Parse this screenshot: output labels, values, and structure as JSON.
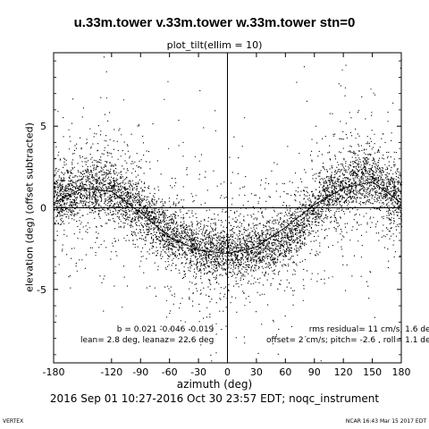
{
  "chart_data": {
    "type": "scatter",
    "title": "u.33m.tower v.33m.tower w.33m.tower stn=0",
    "subtitle": "plot_tilt(ellim = 10)",
    "xlabel": "azimuth (deg)",
    "ylabel": "elevation (deg)  (offset subtracted)",
    "xlim": [
      -180,
      180
    ],
    "ylim": [
      -9.5,
      9.5
    ],
    "xticks": [
      -180,
      -120,
      -90,
      -60,
      -30,
      0,
      30,
      60,
      90,
      120,
      150,
      180
    ],
    "xtick_labels": [
      "-180",
      "-120",
      "-90",
      "-60",
      "-30",
      "0",
      "30",
      "60",
      "90",
      "120",
      "150",
      "180"
    ],
    "yticks": [
      -5,
      0,
      5
    ],
    "ytick_labels": [
      "-5",
      "0",
      "5"
    ],
    "grid": false,
    "reference_lines": {
      "x": 0,
      "y": 0
    },
    "fit_curve": {
      "description_points_azimuth": [
        -180,
        -150,
        -120,
        -90,
        -60,
        -30,
        0,
        30,
        60,
        90,
        120,
        150,
        180
      ],
      "elevation": [
        0.3,
        1.2,
        1.0,
        -0.3,
        -1.8,
        -2.6,
        -2.8,
        -2.4,
        -1.2,
        0.2,
        1.2,
        1.6,
        0.3
      ]
    },
    "trend": {
      "azimuth": [
        -180,
        -165,
        -150,
        -135,
        -120,
        -105,
        -90,
        -75,
        -60,
        -45,
        -30,
        -15,
        0,
        15,
        30,
        45,
        60,
        75,
        90,
        100,
        110,
        120,
        130,
        140,
        150,
        160,
        170,
        180
      ],
      "elevation": [
        0.6,
        0.9,
        1.1,
        1.3,
        1.2,
        0.6,
        -0.2,
        -0.9,
        -1.6,
        -2.1,
        -2.5,
        -2.7,
        -2.8,
        -2.7,
        -2.5,
        -2.2,
        -1.8,
        -1.1,
        -0.1,
        0.5,
        0.9,
        1.2,
        1.5,
        2.0,
        1.8,
        1.4,
        1.0,
        0.6
      ]
    },
    "point_count": 9000,
    "point_color": "#000000"
  },
  "stats": {
    "left_line1": "b =  0.021 -0.046 -0.019",
    "left_line2": "lean= 2.8 deg, leanaz= 22.6 deg",
    "right_line1": "rms residual= 11 cm/s, 1.6 deg",
    "right_line2": "offset= 2 cm/s; pitch= -2.6 , roll=  1.1 deg"
  },
  "daterange": "2016 Sep 01 10:27-2016 Oct 30 23:57 EDT; noqc_instrument",
  "footer": {
    "left": "VERTEX",
    "right": "NCAR 16:43 Mar 15 2017 EDT"
  }
}
